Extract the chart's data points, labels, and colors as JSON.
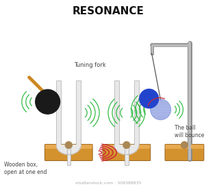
{
  "title": "RESONANCE",
  "title_fontsize": 11,
  "title_fontweight": "bold",
  "bg_color": "#ffffff",
  "label_tuning_fork": "Tuning fork",
  "label_wooden_box": "Wooden box,\nopen at one end",
  "label_ball_bounce": "The ball\nwill bounce",
  "watermark": "shutterstock.com · 309388835",
  "box_color": "#d4922e",
  "box_edge_color": "#a06820",
  "box_top_color": "#e8aa50",
  "fork_color_light": "#e8e8e8",
  "fork_color_mid": "#cccccc",
  "fork_color_dark": "#aaaaaa",
  "wave_color_green": "#33bb44",
  "wave_color_red": "#cc2233",
  "ball_color_black": "#1a1a1a",
  "ball_color_blue_dark": "#2244cc",
  "ball_color_blue_light": "#8899dd",
  "mallet_color": "#cc8822",
  "stand_color_light": "#bbbbbb",
  "stand_color_dark": "#888888",
  "knob_color": "#aa8855",
  "text_color": "#444444",
  "watermark_color": "#aaaaaa"
}
